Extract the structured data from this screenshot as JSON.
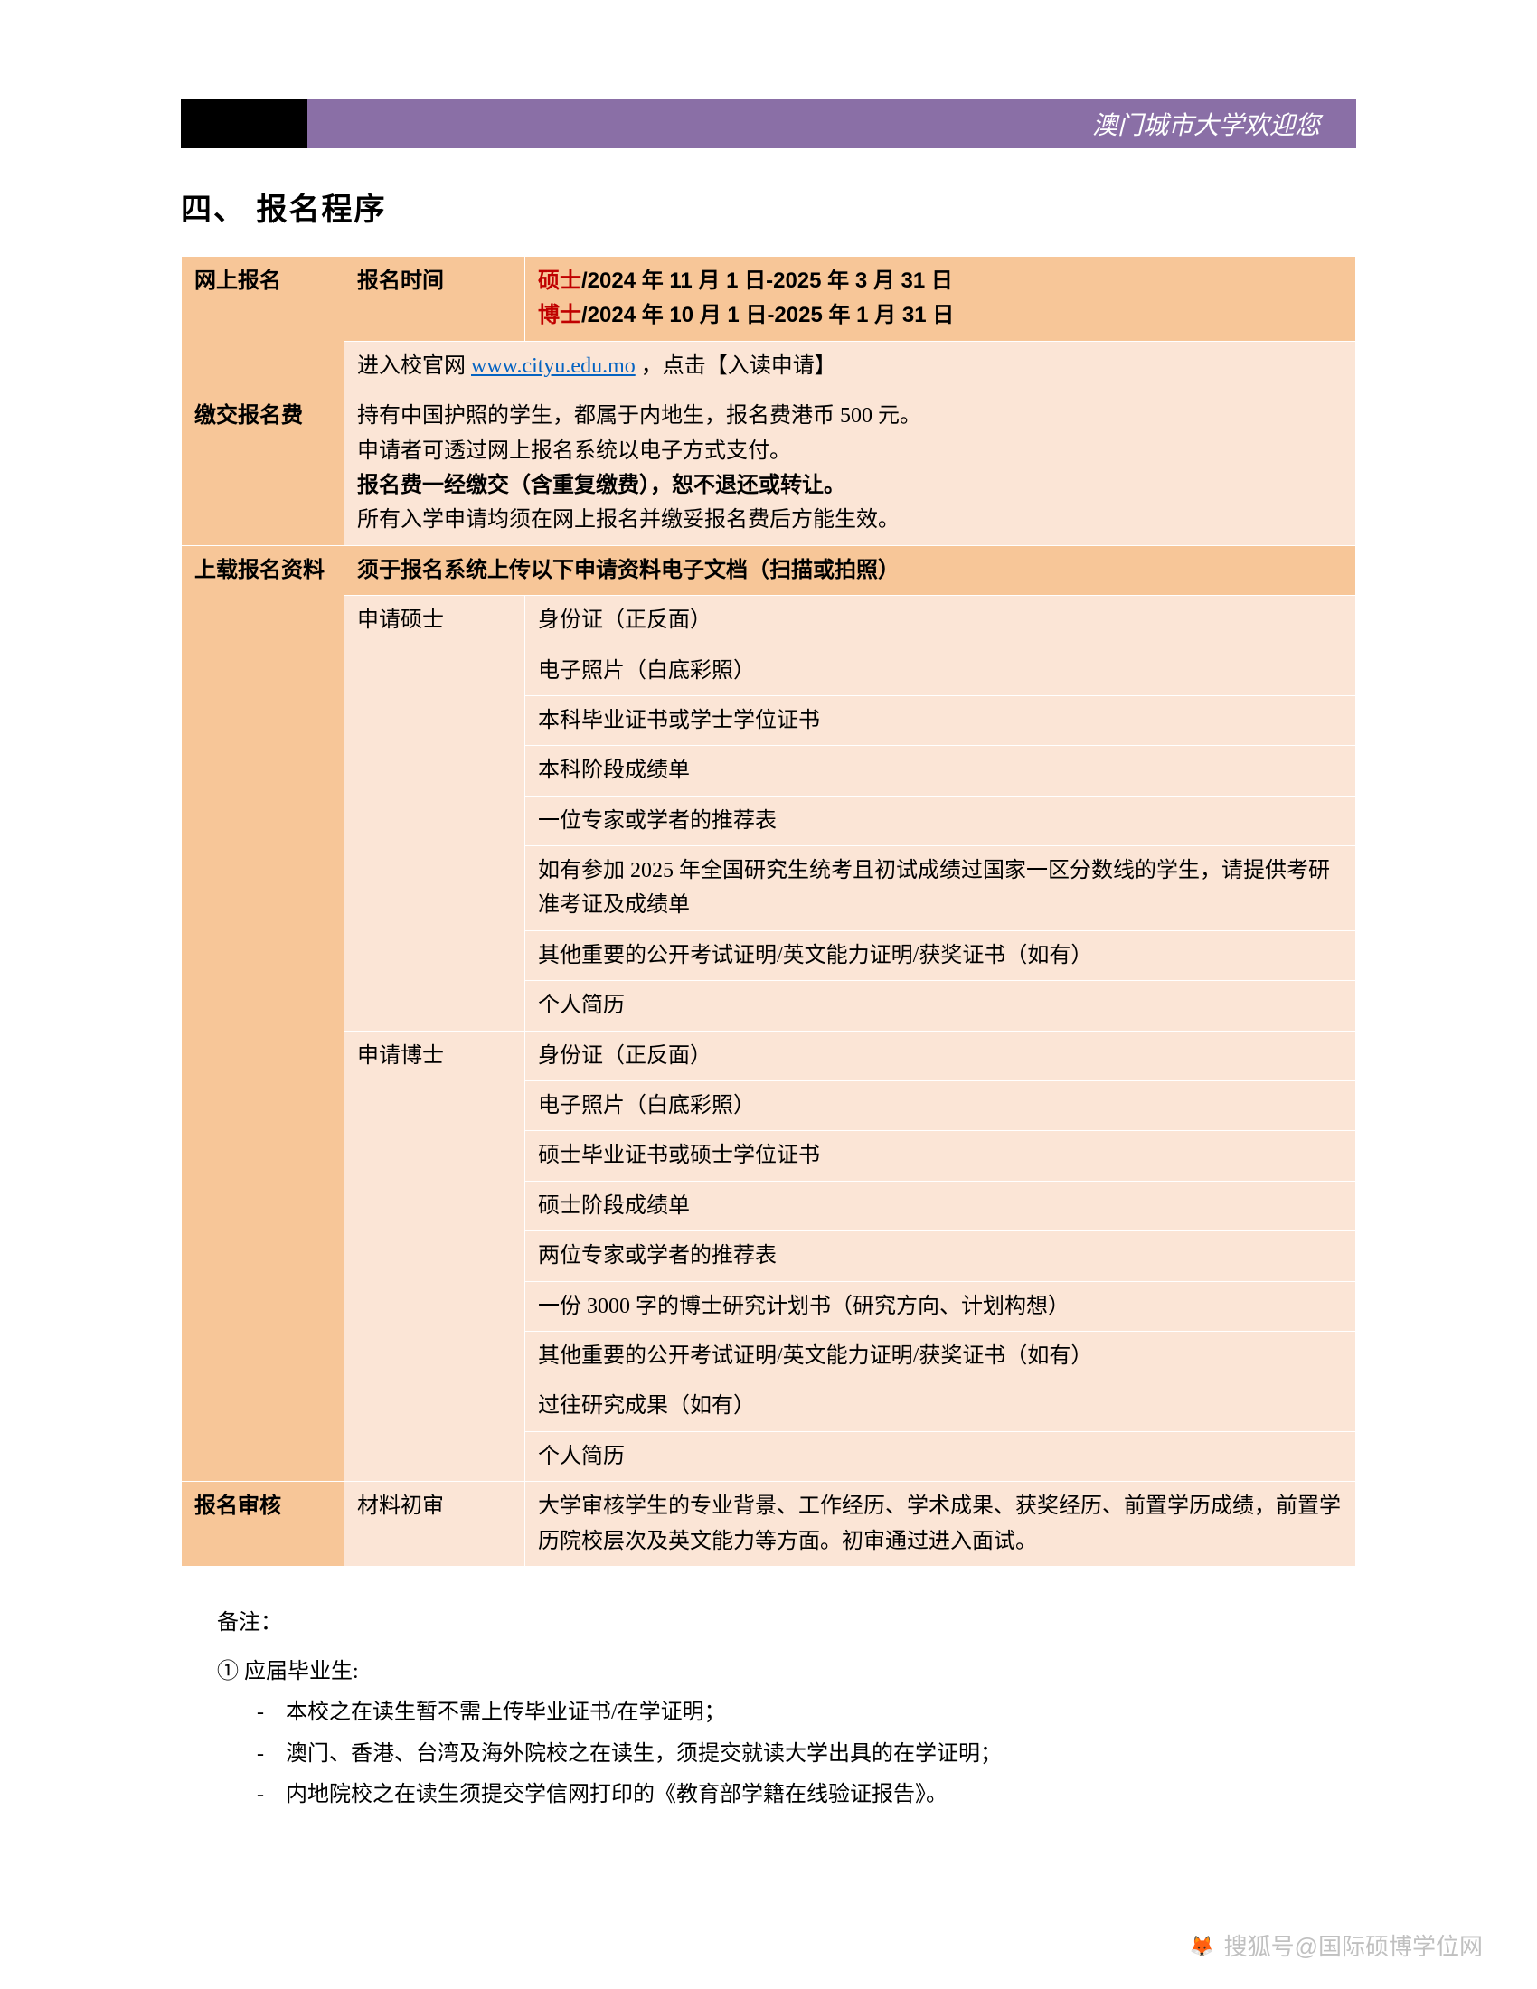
{
  "banner": {
    "text": "澳门城市大学欢迎您"
  },
  "section": {
    "title": "四、 报名程序"
  },
  "table": {
    "row1": {
      "header": "网上报名",
      "sub": "报名时间",
      "master_label": "硕士",
      "master_dates": "/2024 年 11 月 1 日-2025 年 3 月 31 日",
      "phd_label": "博士",
      "phd_dates": "/2024 年 10 月 1 日-2025 年 1 月 31 日"
    },
    "row2": {
      "prefix": "进入校官网 ",
      "link": "www.cityu.edu.mo",
      "suffix": "  ，点击【入读申请】"
    },
    "row3": {
      "header": "缴交报名费",
      "line1": "持有中国护照的学生，都属于内地生，报名费港币 500 元。",
      "line2": "申请者可透过网上报名系统以电子方式支付。",
      "line3": "报名费一经缴交（含重复缴费），恕不退还或转让。",
      "line4": "所有入学申请均须在网上报名并缴妥报名费后方能生效。"
    },
    "row4": {
      "header": "上载报名资料",
      "header_content": "须于报名系统上传以下申请资料电子文档（扫描或拍照）"
    },
    "master": {
      "label": "申请硕士",
      "items": [
        "身份证（正反面）",
        "电子照片（白底彩照）",
        "本科毕业证书或学士学位证书",
        "本科阶段成绩单",
        "一位专家或学者的推荐表",
        "如有参加 2025 年全国研究生统考且初试成绩过国家一区分数线的学生，请提供考研准考证及成绩单",
        "其他重要的公开考试证明/英文能力证明/获奖证书（如有）",
        "个人简历"
      ]
    },
    "phd": {
      "label": "申请博士",
      "items": [
        "身份证（正反面）",
        "电子照片（白底彩照）",
        "硕士毕业证书或硕士学位证书",
        "硕士阶段成绩单",
        "两位专家或学者的推荐表",
        "一份 3000 字的博士研究计划书（研究方向、计划构想）",
        "其他重要的公开考试证明/英文能力证明/获奖证书（如有）",
        "过往研究成果（如有）",
        "个人简历"
      ]
    },
    "review": {
      "header": "报名审核",
      "sub": "材料初审",
      "content": "大学审核学生的专业背景、工作经历、学术成果、获奖经历、前置学历成绩，前置学历院校层次及英文能力等方面。初审通过进入面试。"
    }
  },
  "notes": {
    "title": "备注：",
    "item1": "① 应届毕业生:",
    "sub1": "-　本校之在读生暂不需上传毕业证书/在学证明；",
    "sub2": "-　澳门、香港、台湾及海外院校之在读生，须提交就读大学出具的在学证明；",
    "sub3": "-　内地院校之在读生须提交学信网打印的《教育部学籍在线验证报告》。"
  },
  "watermark": {
    "prefix": "搜狐号",
    "suffix": "@国际硕博学位网"
  },
  "colors": {
    "banner_purple": "#8a6fa6",
    "header_bg": "#f7c698",
    "content_bg": "#fbe5d6",
    "red": "#c00000",
    "link": "#0563c1"
  }
}
